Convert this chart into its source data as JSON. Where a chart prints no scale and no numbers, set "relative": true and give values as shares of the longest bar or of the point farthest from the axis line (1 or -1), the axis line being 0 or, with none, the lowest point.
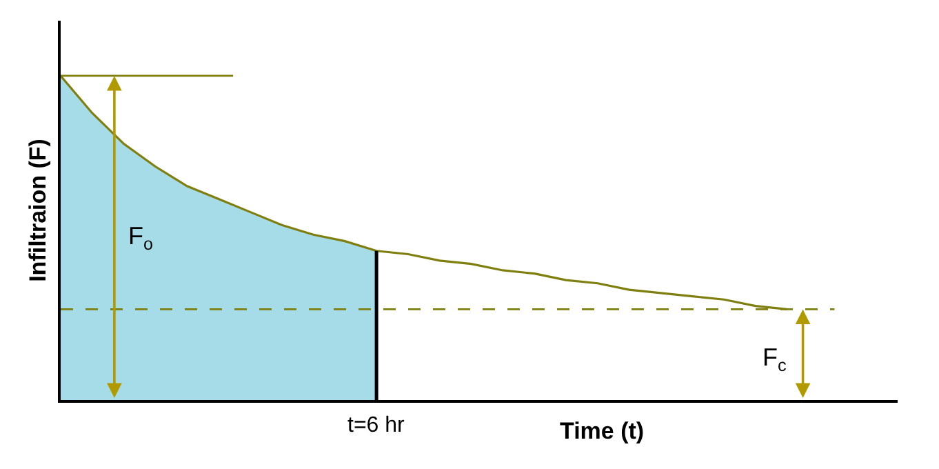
{
  "chart_data": {
    "type": "line",
    "relative": true,
    "xlabel": "Time (t)",
    "ylabel": "Infiltraion (F)",
    "categories": [
      null,
      null,
      null,
      null,
      null,
      null,
      null,
      null,
      null,
      null,
      null,
      null,
      null,
      null,
      null,
      null,
      null,
      null,
      null,
      null,
      null,
      null,
      null,
      null,
      null,
      null
    ],
    "series": [
      {
        "type": "area",
        "color": "#a6dbe8",
        "values": [
          1.0,
          0.885,
          0.79,
          0.72,
          0.66,
          0.62,
          0.58,
          0.54,
          0.51,
          0.49,
          0.46,
          null,
          null,
          null,
          null,
          null,
          null,
          null,
          null,
          null,
          null,
          null,
          null,
          null,
          null,
          null
        ]
      },
      {
        "color": "#7f7f10",
        "values": [
          1.0,
          0.885,
          0.79,
          0.72,
          0.66,
          0.62,
          0.58,
          0.54,
          0.51,
          0.49,
          0.46,
          0.45,
          0.43,
          0.42,
          0.4,
          0.39,
          0.37,
          0.36,
          0.34,
          0.33,
          0.32,
          0.31,
          0.29,
          0.28,
          null,
          null
        ]
      }
    ],
    "ref_lines": [
      {
        "axis": "y",
        "value": 1.0,
        "color": "#7f7f10",
        "line_style": "solid"
      },
      {
        "axis": "y",
        "value": 0.28,
        "color": "#7f7f10",
        "line_style": "dashed"
      }
    ],
    "annotations": [
      "F$_{o}$",
      "F$_{c}$",
      "t=6 hr"
    ],
    "grid": false,
    "marker": "none"
  }
}
